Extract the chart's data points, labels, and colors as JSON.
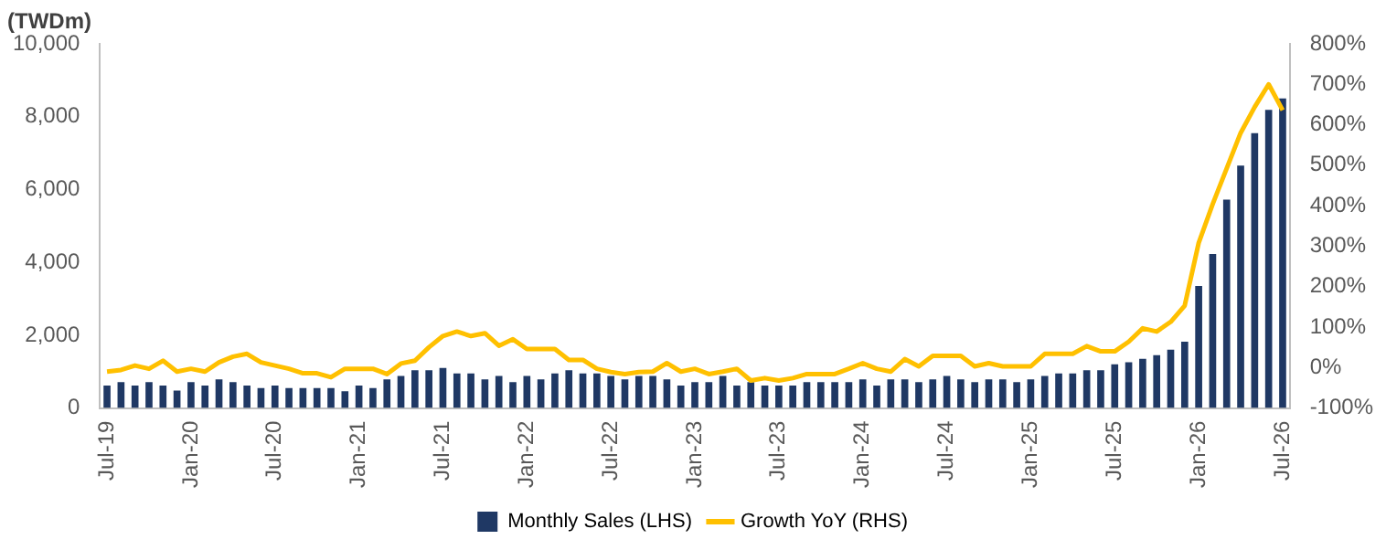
{
  "chart_data": {
    "type": "bar",
    "ylabel": "(TWDm)",
    "categories": [
      "Jul-19",
      null,
      null,
      null,
      null,
      null,
      "Jan-20",
      null,
      null,
      null,
      null,
      null,
      "Jul-20",
      null,
      null,
      null,
      null,
      null,
      "Jan-21",
      null,
      null,
      null,
      null,
      null,
      "Jul-21",
      null,
      null,
      null,
      null,
      null,
      "Jan-22",
      null,
      null,
      null,
      null,
      null,
      "Jul-22",
      null,
      null,
      null,
      null,
      null,
      "Jan-23",
      null,
      null,
      null,
      null,
      null,
      "Jul-23",
      null,
      null,
      null,
      null,
      null,
      "Jan-24",
      null,
      null,
      null,
      null,
      null,
      "Jul-24",
      null,
      null,
      null,
      null,
      null,
      "Jan-25",
      null,
      null,
      null,
      null,
      null,
      "Jul-25",
      null,
      null,
      null,
      null,
      null,
      "Jan-26",
      null,
      null,
      null,
      null,
      null,
      "Jul-26"
    ],
    "series": [
      {
        "name": "Monthly Sales (LHS)",
        "color": "#1f3864",
        "values": [
          620,
          710,
          620,
          710,
          620,
          480,
          710,
          620,
          790,
          710,
          620,
          550,
          620,
          550,
          550,
          550,
          550,
          460,
          620,
          550,
          790,
          880,
          1040,
          1040,
          1100,
          950,
          950,
          790,
          880,
          710,
          880,
          790,
          950,
          1040,
          950,
          950,
          880,
          790,
          880,
          880,
          790,
          620,
          710,
          710,
          880,
          620,
          710,
          620,
          620,
          620,
          710,
          710,
          710,
          710,
          790,
          620,
          790,
          790,
          710,
          790,
          880,
          790,
          710,
          790,
          790,
          710,
          790,
          880,
          950,
          950,
          1040,
          1040,
          1200,
          1260,
          1350,
          1450,
          1600,
          1820,
          3350,
          4230,
          5720,
          6660,
          7550,
          8190,
          8500
        ]
      },
      {
        "name": "Growth YoY (RHS)",
        "type": "line",
        "axis": "y2",
        "color": "#ffc000",
        "values": [
          -10,
          -6,
          5,
          -3,
          17,
          -10,
          -3,
          -10,
          13,
          27,
          34,
          13,
          5,
          -3,
          -14,
          -14,
          -24,
          -3,
          -3,
          -3,
          -16,
          10,
          17,
          50,
          78,
          89,
          78,
          85,
          54,
          70,
          46,
          46,
          46,
          19,
          19,
          -3,
          -11,
          -16,
          -11,
          -10,
          11,
          -10,
          -3,
          -16,
          -10,
          -3,
          -32,
          -26,
          -32,
          -26,
          -16,
          -16,
          -16,
          -3,
          11,
          -3,
          -10,
          21,
          3,
          29,
          29,
          29,
          3,
          11,
          3,
          3,
          3,
          34,
          34,
          34,
          53,
          40,
          40,
          64,
          97,
          89,
          113,
          153,
          308,
          404,
          492,
          580,
          644,
          700,
          636
        ]
      }
    ],
    "ylim": [
      0,
      10000
    ],
    "yticks": [
      0,
      {
        "value": 2000,
        "label": "2,000"
      },
      {
        "value": 4000,
        "label": "4,000"
      },
      {
        "value": 6000,
        "label": "6,000"
      },
      {
        "value": 8000,
        "label": "8,000"
      },
      {
        "value": 10000,
        "label": "10,000"
      }
    ],
    "y2lim": [
      -100,
      800
    ],
    "y2ticks": [
      {
        "value": -100,
        "label": "-100%"
      },
      {
        "value": 0,
        "label": "0%"
      },
      {
        "value": 100,
        "label": "100%"
      },
      {
        "value": 200,
        "label": "200%"
      },
      {
        "value": 300,
        "label": "300%"
      },
      {
        "value": 400,
        "label": "400%"
      },
      {
        "value": 500,
        "label": "500%"
      },
      {
        "value": 600,
        "label": "600%"
      },
      {
        "value": 700,
        "label": "700%"
      },
      {
        "value": 800,
        "label": "800%"
      }
    ],
    "grid": false,
    "legend": "bottom",
    "marker": "none"
  }
}
